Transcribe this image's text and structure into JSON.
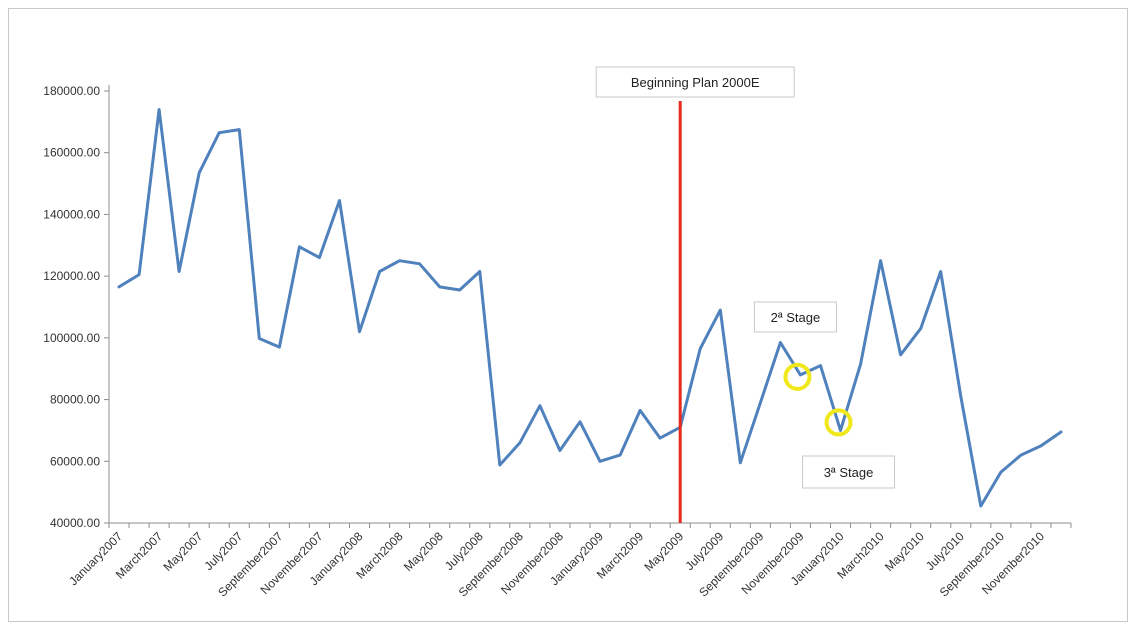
{
  "chart_data": {
    "type": "line",
    "title": "",
    "xlabel": "",
    "ylabel": "",
    "ylim": [
      40000,
      180000
    ],
    "yticks": [
      "40000.00",
      "60000.00",
      "80000.00",
      "100000.00",
      "120000.00",
      "140000.00",
      "160000.00",
      "180000.00"
    ],
    "grid": false,
    "legend": "none",
    "line_color": "#4f81bd",
    "x": [
      "January2007",
      "February2007",
      "March2007",
      "April2007",
      "May2007",
      "June2007",
      "July2007",
      "August2007",
      "September2007",
      "October2007",
      "November2007",
      "December2007",
      "January2008",
      "February2008",
      "March2008",
      "April2008",
      "May2008",
      "June2008",
      "July2008",
      "August2008",
      "September2008",
      "October2008",
      "November2008",
      "December2008",
      "January2009",
      "February2009",
      "March2009",
      "April2009",
      "May2009",
      "June2009",
      "July2009",
      "August2009",
      "September2009",
      "October2009",
      "November2009",
      "December2009",
      "January2010",
      "February2010",
      "March2010",
      "April2010",
      "May2010",
      "June2010",
      "July2010",
      "August2010",
      "September2010",
      "October2010",
      "November2010",
      "December2010"
    ],
    "x_tick_labels_shown": [
      "January2007",
      "March2007",
      "May2007",
      "July2007",
      "September2007",
      "November2007",
      "January2008",
      "March2008",
      "May2008",
      "July2008",
      "September2008",
      "November2008",
      "January2009",
      "March2009",
      "May2009",
      "July2009",
      "September2009",
      "November2009",
      "January2010",
      "March2010",
      "May2010",
      "July2010",
      "September2010",
      "November2010"
    ],
    "series": [
      {
        "values": [
          116500,
          120500,
          174000,
          121500,
          153500,
          166500,
          167500,
          99800,
          97000,
          129500,
          126000,
          144500,
          102000,
          121500,
          125000,
          124000,
          116500,
          115500,
          121500,
          58800,
          66000,
          78000,
          63500,
          72800,
          60000,
          62000,
          76500,
          67500,
          71000,
          96500,
          109000,
          59500,
          79000,
          98500,
          88000,
          91000,
          70000,
          91500,
          125000,
          94500,
          103000,
          121500,
          81000,
          45500,
          56500,
          62000,
          65000,
          69500
        ]
      }
    ],
    "annotations": {
      "vline": {
        "label": "Beginning Plan 2000E",
        "x": "May2009",
        "color": "#e8291c"
      },
      "stage2": {
        "label": "2ª Stage",
        "x": "November2009",
        "marker_color": "#f0e81a"
      },
      "stage3": {
        "label": "3ª Stage",
        "x": "January2010",
        "marker_color": "#f0e81a"
      }
    }
  }
}
